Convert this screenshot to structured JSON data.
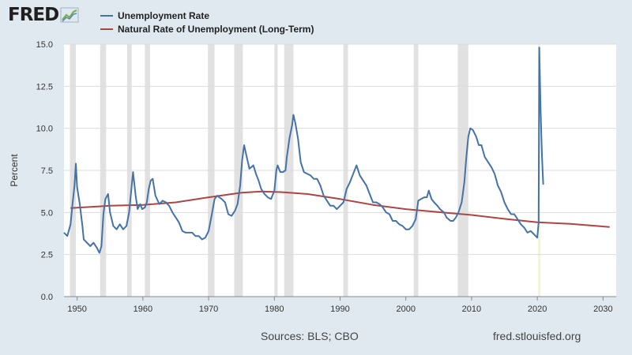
{
  "header": {
    "logo_text": "FRED",
    "logo_icon": "chart-trend-icon",
    "legend": [
      {
        "label": "Unemployment Rate",
        "color": "#4572a7"
      },
      {
        "label": "Natural Rate of Unemployment (Long-Term)",
        "color": "#aa4643"
      }
    ]
  },
  "footer": {
    "sources": "Sources: BLS; CBO",
    "site": "fred.stlouisfed.org"
  },
  "chart_data": {
    "type": "line",
    "ylabel": "Percent",
    "xlim": [
      1948,
      2032
    ],
    "ylim": [
      0,
      15
    ],
    "yticks": [
      "0.0",
      "2.5",
      "5.0",
      "7.5",
      "10.0",
      "12.5",
      "15.0"
    ],
    "xticks": [
      "1950",
      "1960",
      "1970",
      "1980",
      "1990",
      "2000",
      "2010",
      "2020",
      "2030"
    ],
    "grid": "horizontal",
    "recessions": [
      [
        1948.9,
        1949.8
      ],
      [
        1953.5,
        1954.4
      ],
      [
        1957.6,
        1958.3
      ],
      [
        1960.3,
        1961.1
      ],
      [
        1969.9,
        1970.9
      ],
      [
        1973.9,
        1975.2
      ],
      [
        1980.0,
        1980.5
      ],
      [
        1981.5,
        1982.9
      ],
      [
        1990.5,
        1991.2
      ],
      [
        2001.2,
        2001.9
      ],
      [
        2007.9,
        2009.5
      ]
    ],
    "highlight": [
      2020.1,
      2020.5
    ],
    "series": [
      {
        "name": "Unemployment Rate",
        "color": "#4572a7",
        "points": [
          [
            1948.0,
            3.8
          ],
          [
            1948.5,
            3.6
          ],
          [
            1949.0,
            4.3
          ],
          [
            1949.3,
            5.5
          ],
          [
            1949.6,
            6.6
          ],
          [
            1949.8,
            7.9
          ],
          [
            1950.0,
            6.5
          ],
          [
            1950.4,
            5.5
          ],
          [
            1950.8,
            4.2
          ],
          [
            1951.0,
            3.4
          ],
          [
            1951.5,
            3.2
          ],
          [
            1952.0,
            3.0
          ],
          [
            1952.5,
            3.2
          ],
          [
            1953.0,
            2.9
          ],
          [
            1953.4,
            2.6
          ],
          [
            1953.7,
            3.0
          ],
          [
            1954.0,
            4.9
          ],
          [
            1954.3,
            5.8
          ],
          [
            1954.7,
            6.1
          ],
          [
            1955.0,
            5.0
          ],
          [
            1955.5,
            4.2
          ],
          [
            1956.0,
            4.0
          ],
          [
            1956.5,
            4.3
          ],
          [
            1957.0,
            4.0
          ],
          [
            1957.5,
            4.2
          ],
          [
            1957.9,
            5.0
          ],
          [
            1958.2,
            6.2
          ],
          [
            1958.5,
            7.4
          ],
          [
            1958.9,
            6.0
          ],
          [
            1959.2,
            5.2
          ],
          [
            1959.6,
            5.5
          ],
          [
            1959.9,
            5.2
          ],
          [
            1960.3,
            5.3
          ],
          [
            1960.6,
            5.6
          ],
          [
            1960.9,
            6.4
          ],
          [
            1961.2,
            6.9
          ],
          [
            1961.5,
            7.0
          ],
          [
            1961.9,
            6.0
          ],
          [
            1962.5,
            5.5
          ],
          [
            1963.0,
            5.7
          ],
          [
            1963.5,
            5.6
          ],
          [
            1964.0,
            5.4
          ],
          [
            1964.5,
            5.0
          ],
          [
            1965.0,
            4.7
          ],
          [
            1965.5,
            4.4
          ],
          [
            1966.0,
            3.9
          ],
          [
            1966.5,
            3.8
          ],
          [
            1967.0,
            3.8
          ],
          [
            1967.5,
            3.8
          ],
          [
            1968.0,
            3.6
          ],
          [
            1968.5,
            3.6
          ],
          [
            1969.0,
            3.4
          ],
          [
            1969.5,
            3.5
          ],
          [
            1970.0,
            3.9
          ],
          [
            1970.5,
            4.9
          ],
          [
            1970.9,
            5.8
          ],
          [
            1971.3,
            6.0
          ],
          [
            1971.6,
            5.9
          ],
          [
            1972.0,
            5.8
          ],
          [
            1972.5,
            5.6
          ],
          [
            1973.0,
            4.9
          ],
          [
            1973.5,
            4.8
          ],
          [
            1974.0,
            5.1
          ],
          [
            1974.4,
            5.5
          ],
          [
            1974.8,
            6.6
          ],
          [
            1975.1,
            8.1
          ],
          [
            1975.4,
            9.0
          ],
          [
            1975.8,
            8.3
          ],
          [
            1976.2,
            7.6
          ],
          [
            1976.8,
            7.8
          ],
          [
            1977.2,
            7.3
          ],
          [
            1977.6,
            6.9
          ],
          [
            1978.0,
            6.4
          ],
          [
            1978.5,
            6.1
          ],
          [
            1979.0,
            5.9
          ],
          [
            1979.5,
            5.8
          ],
          [
            1980.0,
            6.3
          ],
          [
            1980.3,
            7.5
          ],
          [
            1980.5,
            7.8
          ],
          [
            1980.9,
            7.4
          ],
          [
            1981.3,
            7.4
          ],
          [
            1981.7,
            7.5
          ],
          [
            1981.9,
            8.3
          ],
          [
            1982.3,
            9.4
          ],
          [
            1982.7,
            10.2
          ],
          [
            1982.9,
            10.8
          ],
          [
            1983.2,
            10.3
          ],
          [
            1983.6,
            9.4
          ],
          [
            1984.0,
            8.0
          ],
          [
            1984.5,
            7.4
          ],
          [
            1985.0,
            7.3
          ],
          [
            1985.5,
            7.2
          ],
          [
            1986.0,
            7.0
          ],
          [
            1986.5,
            7.0
          ],
          [
            1987.0,
            6.6
          ],
          [
            1987.5,
            6.0
          ],
          [
            1988.0,
            5.7
          ],
          [
            1988.5,
            5.4
          ],
          [
            1989.0,
            5.4
          ],
          [
            1989.5,
            5.2
          ],
          [
            1990.0,
            5.4
          ],
          [
            1990.5,
            5.6
          ],
          [
            1991.0,
            6.4
          ],
          [
            1991.5,
            6.8
          ],
          [
            1992.0,
            7.3
          ],
          [
            1992.5,
            7.8
          ],
          [
            1993.0,
            7.2
          ],
          [
            1993.5,
            6.9
          ],
          [
            1994.0,
            6.6
          ],
          [
            1994.5,
            6.1
          ],
          [
            1995.0,
            5.6
          ],
          [
            1995.5,
            5.6
          ],
          [
            1996.0,
            5.5
          ],
          [
            1996.5,
            5.3
          ],
          [
            1997.0,
            5.0
          ],
          [
            1997.5,
            4.9
          ],
          [
            1998.0,
            4.5
          ],
          [
            1998.5,
            4.5
          ],
          [
            1999.0,
            4.3
          ],
          [
            1999.5,
            4.2
          ],
          [
            2000.0,
            4.0
          ],
          [
            2000.5,
            4.0
          ],
          [
            2001.0,
            4.2
          ],
          [
            2001.5,
            4.6
          ],
          [
            2001.9,
            5.7
          ],
          [
            2002.3,
            5.8
          ],
          [
            2002.8,
            5.9
          ],
          [
            2003.2,
            5.9
          ],
          [
            2003.5,
            6.3
          ],
          [
            2003.9,
            5.8
          ],
          [
            2004.3,
            5.6
          ],
          [
            2004.8,
            5.4
          ],
          [
            2005.2,
            5.2
          ],
          [
            2005.8,
            5.0
          ],
          [
            2006.2,
            4.7
          ],
          [
            2006.8,
            4.5
          ],
          [
            2007.2,
            4.5
          ],
          [
            2007.6,
            4.7
          ],
          [
            2008.0,
            5.0
          ],
          [
            2008.5,
            5.6
          ],
          [
            2008.9,
            6.8
          ],
          [
            2009.2,
            8.3
          ],
          [
            2009.5,
            9.5
          ],
          [
            2009.8,
            10.0
          ],
          [
            2010.2,
            9.9
          ],
          [
            2010.7,
            9.5
          ],
          [
            2011.1,
            9.0
          ],
          [
            2011.5,
            9.0
          ],
          [
            2012.0,
            8.3
          ],
          [
            2012.5,
            8.0
          ],
          [
            2013.0,
            7.7
          ],
          [
            2013.5,
            7.3
          ],
          [
            2014.0,
            6.6
          ],
          [
            2014.5,
            6.2
          ],
          [
            2015.0,
            5.6
          ],
          [
            2015.5,
            5.2
          ],
          [
            2016.0,
            4.9
          ],
          [
            2016.5,
            4.9
          ],
          [
            2017.0,
            4.6
          ],
          [
            2017.5,
            4.3
          ],
          [
            2018.0,
            4.1
          ],
          [
            2018.5,
            3.8
          ],
          [
            2019.0,
            3.9
          ],
          [
            2019.5,
            3.7
          ],
          [
            2020.0,
            3.5
          ],
          [
            2020.2,
            4.4
          ],
          [
            2020.3,
            14.8
          ],
          [
            2020.5,
            11.1
          ],
          [
            2020.7,
            8.4
          ],
          [
            2020.9,
            6.7
          ],
          [
            2021.0,
            6.7
          ]
        ]
      },
      {
        "name": "Natural Rate of Unemployment (Long-Term)",
        "color": "#aa4643",
        "points": [
          [
            1949.0,
            5.26
          ],
          [
            1955.0,
            5.4
          ],
          [
            1960.0,
            5.45
          ],
          [
            1965.0,
            5.6
          ],
          [
            1970.0,
            5.9
          ],
          [
            1975.0,
            6.18
          ],
          [
            1978.0,
            6.25
          ],
          [
            1981.0,
            6.21
          ],
          [
            1985.0,
            6.1
          ],
          [
            1990.0,
            5.8
          ],
          [
            1995.0,
            5.45
          ],
          [
            2000.0,
            5.2
          ],
          [
            2005.0,
            5.02
          ],
          [
            2010.0,
            4.85
          ],
          [
            2015.0,
            4.62
          ],
          [
            2020.0,
            4.42
          ],
          [
            2025.0,
            4.32
          ],
          [
            2031.0,
            4.14
          ]
        ]
      }
    ]
  }
}
